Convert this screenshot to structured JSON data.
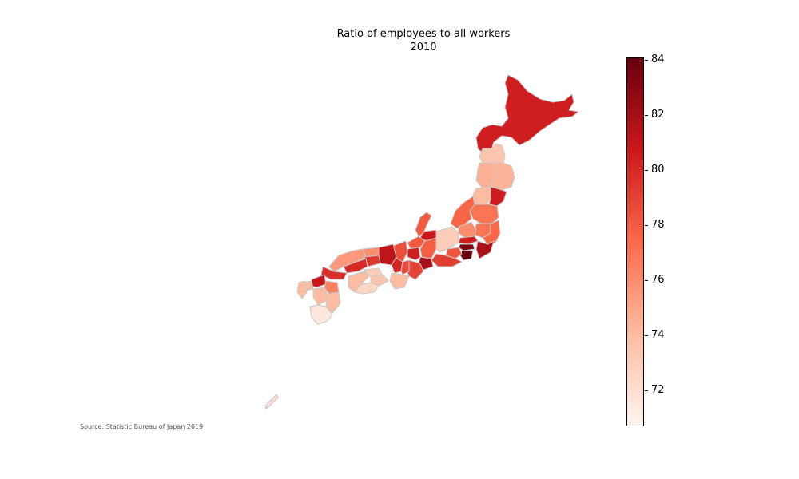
{
  "title": {
    "line1": "Ratio of employees to all workers",
    "line2": "2010"
  },
  "source": "Source: Statistic Bureau of Japan 2019",
  "colorbar": {
    "colormap": "Reds",
    "min": 70.7,
    "max": 84.1,
    "ticks": [
      "72",
      "74",
      "76",
      "78",
      "80",
      "82",
      "84"
    ],
    "colors": {
      "low": "#fff5f0",
      "mid_low": "#fcbba1",
      "mid": "#fb6a4a",
      "mid_high": "#cb181d",
      "high": "#67000d"
    }
  },
  "border_color": "#c8c8c8",
  "prefectures": [
    {
      "name": "Hokkaido",
      "value": 80.5
    },
    {
      "name": "Aomori",
      "value": 73.5
    },
    {
      "name": "Iwate",
      "value": 74.3
    },
    {
      "name": "Akita",
      "value": 74.5
    },
    {
      "name": "Miyagi",
      "value": 80.6
    },
    {
      "name": "Yamagata",
      "value": 74.0
    },
    {
      "name": "Fukushima",
      "value": 77.0
    },
    {
      "name": "Niigata",
      "value": 77.6
    },
    {
      "name": "Ibaraki",
      "value": 77.5
    },
    {
      "name": "Tochigi",
      "value": 77.0
    },
    {
      "name": "Gunma",
      "value": 76.0
    },
    {
      "name": "Saitama",
      "value": 80.5
    },
    {
      "name": "Chiba",
      "value": 81.8
    },
    {
      "name": "Tokyo",
      "value": 83.5
    },
    {
      "name": "Kanagawa",
      "value": 84.1
    },
    {
      "name": "Yamanashi",
      "value": 78.2
    },
    {
      "name": "Nagano",
      "value": 73.0
    },
    {
      "name": "Toyama",
      "value": 80.8
    },
    {
      "name": "Ishikawa",
      "value": 78.0
    },
    {
      "name": "Fukui",
      "value": 78.0
    },
    {
      "name": "Gifu",
      "value": 77.8
    },
    {
      "name": "Shizuoka",
      "value": 79.2
    },
    {
      "name": "Aichi",
      "value": 82.0
    },
    {
      "name": "Mie",
      "value": 79.0
    },
    {
      "name": "Shiga",
      "value": 80.5
    },
    {
      "name": "Kyoto",
      "value": 78.5
    },
    {
      "name": "Osaka",
      "value": 80.2
    },
    {
      "name": "Hyogo",
      "value": 81.2
    },
    {
      "name": "Nara",
      "value": 78.7
    },
    {
      "name": "Wakayama",
      "value": 74.0
    },
    {
      "name": "Tottori",
      "value": 76.0
    },
    {
      "name": "Shimane",
      "value": 75.5
    },
    {
      "name": "Okayama",
      "value": 79.5
    },
    {
      "name": "Hiroshima",
      "value": 80.0
    },
    {
      "name": "Yamaguchi",
      "value": 79.8
    },
    {
      "name": "Tokushima",
      "value": 73.5
    },
    {
      "name": "Kagawa",
      "value": 73.0
    },
    {
      "name": "Ehime",
      "value": 74.0
    },
    {
      "name": "Kochi",
      "value": 72.5
    },
    {
      "name": "Fukuoka",
      "value": 81.0
    },
    {
      "name": "Saga",
      "value": 74.0
    },
    {
      "name": "Nagasaki",
      "value": 74.0
    },
    {
      "name": "Kumamoto",
      "value": 74.0
    },
    {
      "name": "Oita",
      "value": 76.5
    },
    {
      "name": "Miyazaki",
      "value": 74.0
    },
    {
      "name": "Kagoshima",
      "value": 71.5
    },
    {
      "name": "Okinawa",
      "value": 72.0
    }
  ]
}
